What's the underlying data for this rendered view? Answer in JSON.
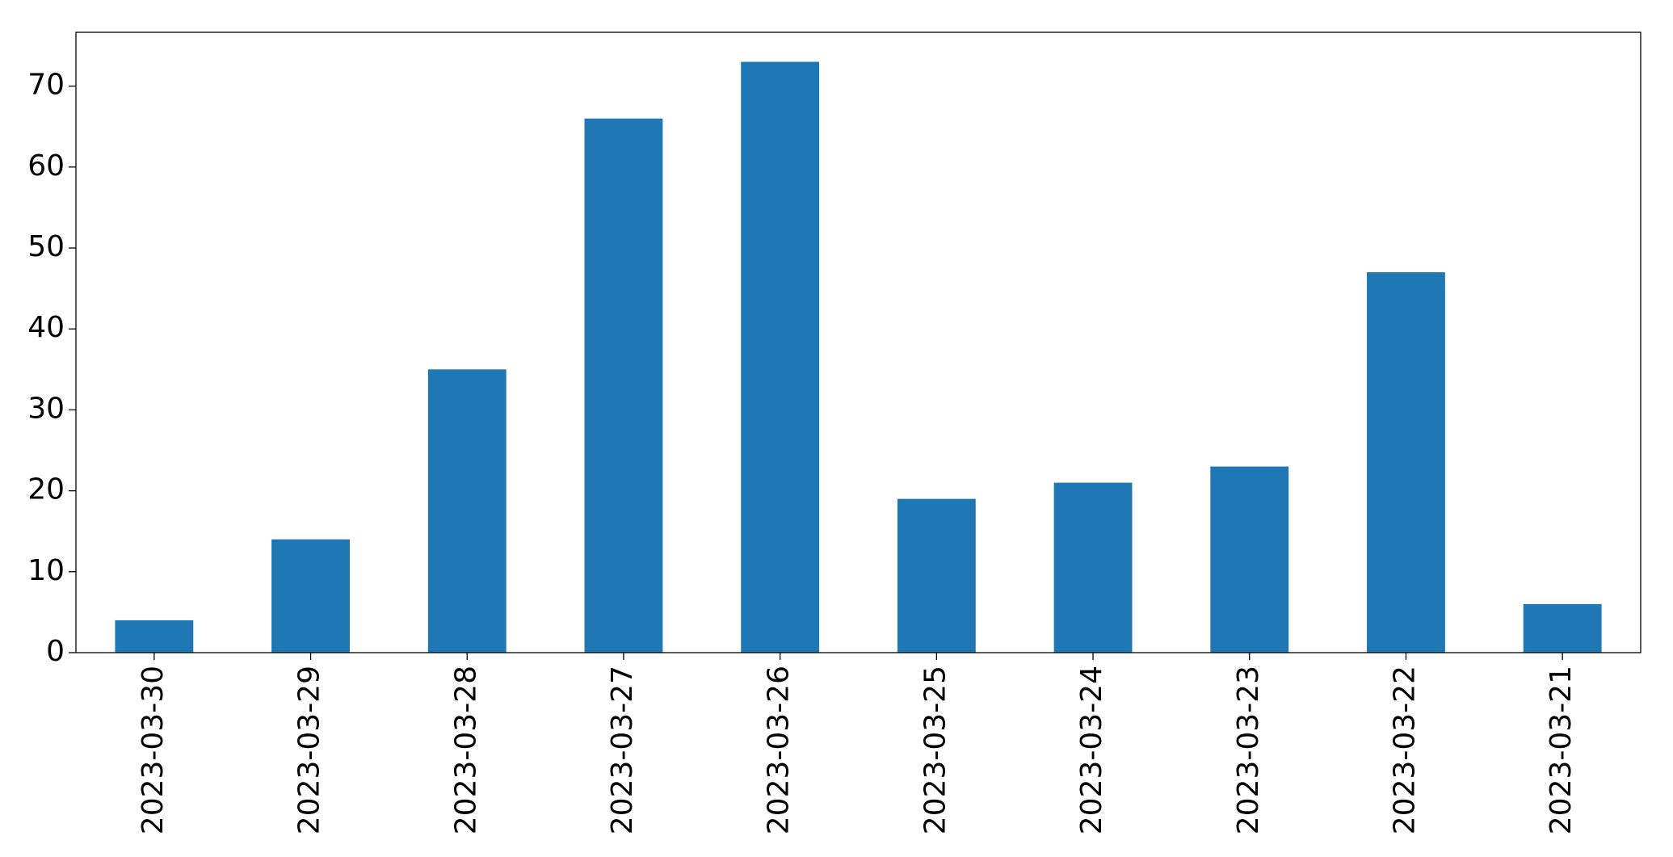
{
  "chart_data": {
    "type": "bar",
    "categories": [
      "2023-03-30",
      "2023-03-29",
      "2023-03-28",
      "2023-03-27",
      "2023-03-26",
      "2023-03-25",
      "2023-03-24",
      "2023-03-23",
      "2023-03-22",
      "2023-03-21"
    ],
    "values": [
      4,
      14,
      35,
      66,
      73,
      19,
      21,
      23,
      47,
      6
    ],
    "color": "#1f77b4",
    "ylim": [
      0,
      76.65
    ],
    "yticks": [
      0,
      10,
      20,
      30,
      40,
      50,
      60,
      70
    ],
    "grid": false
  }
}
